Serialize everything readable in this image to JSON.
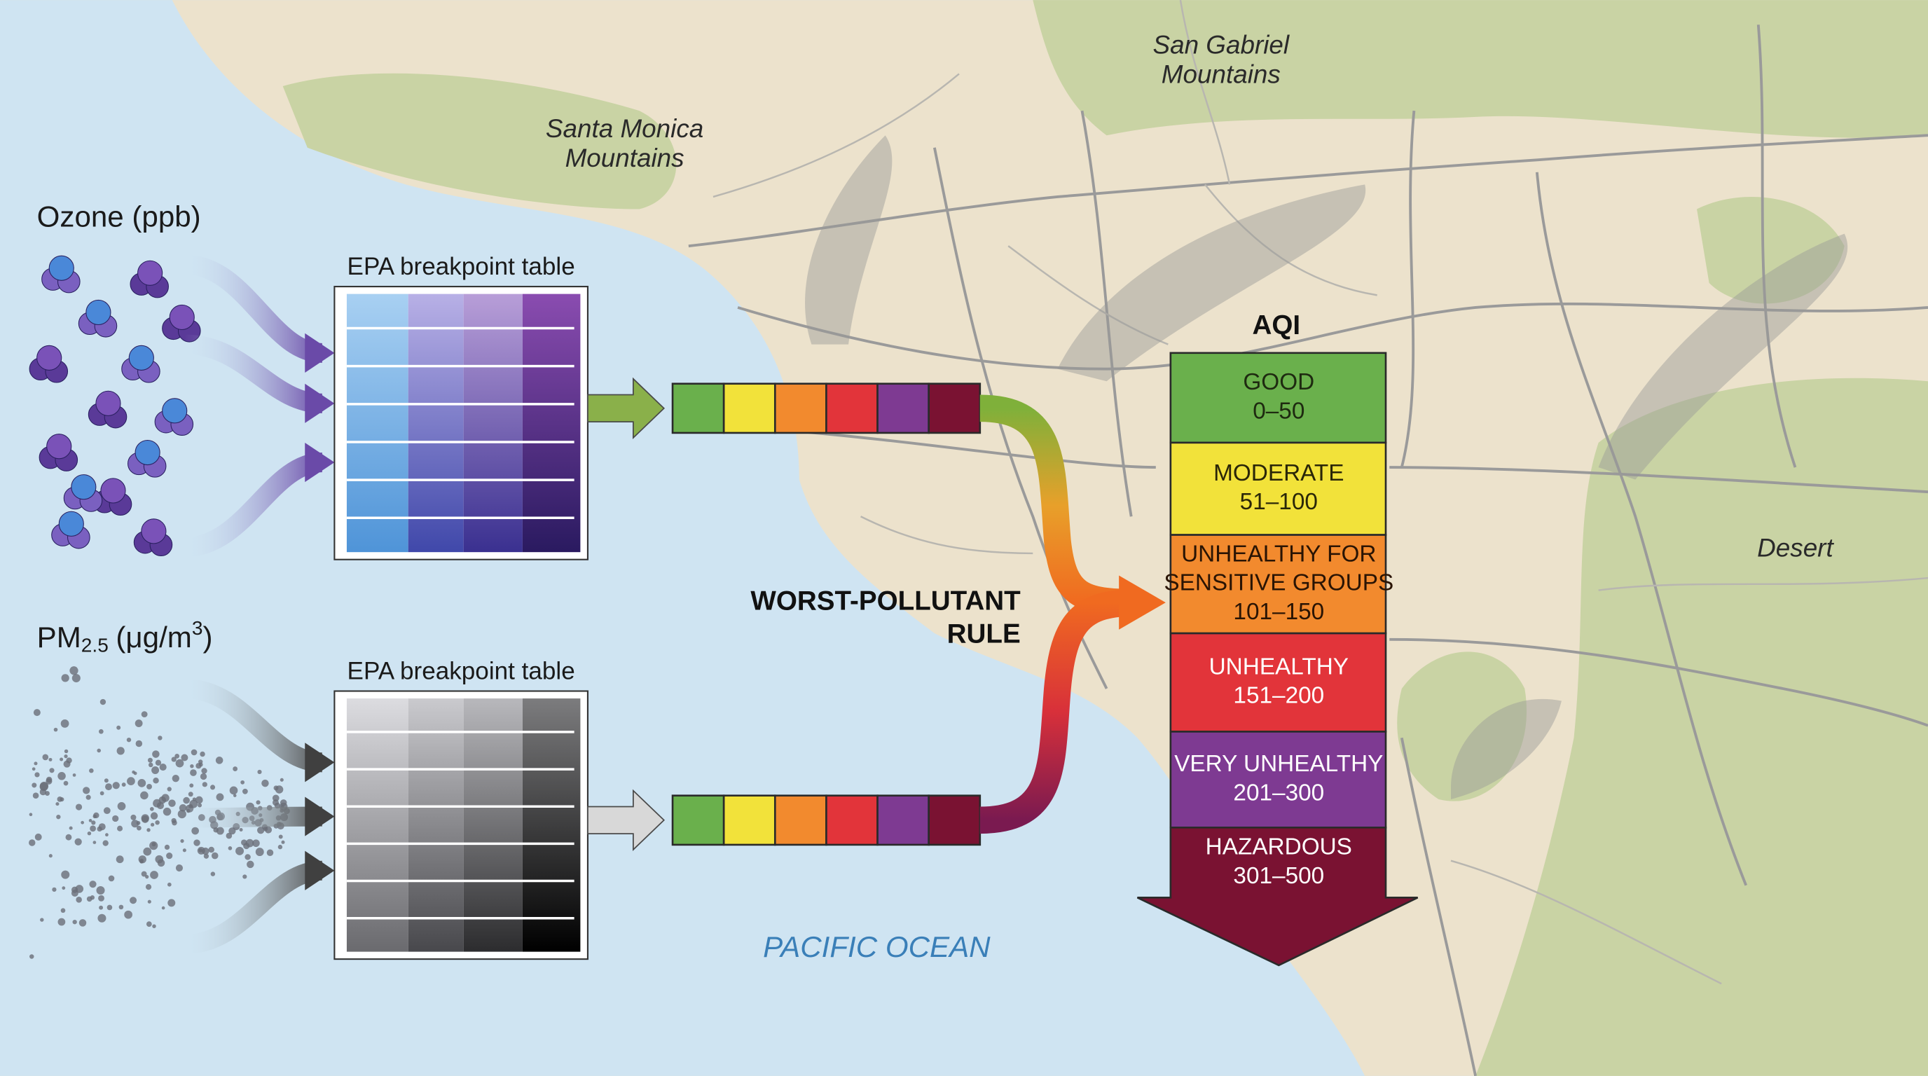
{
  "map_labels": {
    "santa_monica": [
      "Santa Monica",
      "Mountains"
    ],
    "san_gabriel": [
      "San Gabriel",
      "Mountains"
    ],
    "desert": "Desert",
    "ocean": "PACIFIC OCEAN"
  },
  "inputs": [
    {
      "label": "Ozone (ppb)",
      "table_title": "EPA breakpoint table"
    },
    {
      "label_parts": [
        "PM",
        "2.5",
        "(μg/m",
        "3",
        ")"
      ],
      "table_title": "EPA breakpoint table"
    }
  ],
  "rule": [
    "WORST-POLLUTANT",
    "RULE"
  ],
  "aqi": {
    "title": "AQI",
    "categories": [
      {
        "lines": [
          "GOOD"
        ],
        "range": "0–50",
        "color": "#6ab04c",
        "text_color": "#1e2a10"
      },
      {
        "lines": [
          "MODERATE"
        ],
        "range": "51–100",
        "color": "#f2e23a",
        "text_color": "#2a2608"
      },
      {
        "lines": [
          "UNHEALTHY FOR",
          "SENSITIVE GROUPS"
        ],
        "range": "101–150",
        "color": "#f28a2e",
        "text_color": "#2a1404"
      },
      {
        "lines": [
          "UNHEALTHY"
        ],
        "range": "151–200",
        "color": "#e2343a",
        "text_color": "#ffffff"
      },
      {
        "lines": [
          "VERY UNHEALTHY"
        ],
        "range": "201–300",
        "color": "#7e3a92",
        "text_color": "#ffffff"
      },
      {
        "lines": [
          "HAZARDOUS"
        ],
        "range": "301–500",
        "color": "#7a1232",
        "text_color": "#ffffff"
      }
    ]
  }
}
